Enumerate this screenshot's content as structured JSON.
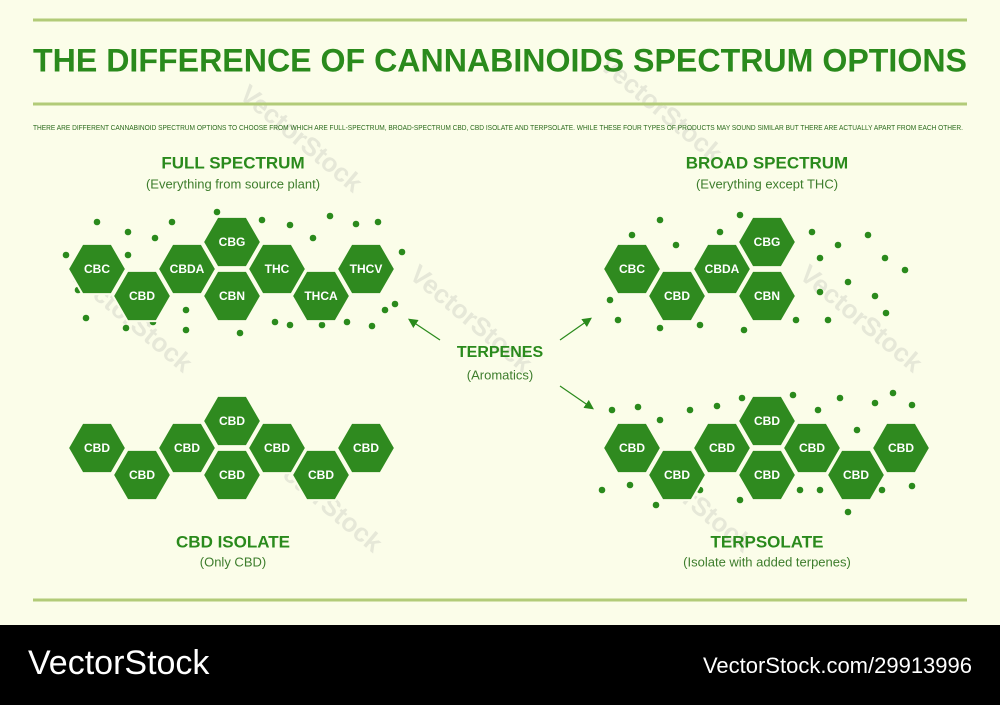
{
  "header": {
    "title": "THE DIFFERENCE OF CANNABINOIDS SPECTRUM OPTIONS",
    "intro": "THERE ARE DIFFERENT CANNABINOID SPECTRUM OPTIONS TO CHOOSE FROM WHICH ARE FULL-SPECTRUM, BROAD-SPECTRUM CBD, CBD ISOLATE AND TERPSOLATE. WHILE THESE FOUR TYPES OF PRODUCTS MAY SOUND SIMILAR BUT THERE ARE ACTUALLY APART FROM EACH OTHER."
  },
  "panels": [
    {
      "title": "FULL SPECTRUM",
      "subtitle": "(Everything from source plant)",
      "molecules": [
        "CBC",
        "CBD",
        "CBDA",
        "CBG",
        "CBN",
        "THC",
        "THCA",
        "THCV"
      ]
    },
    {
      "title": "BROAD SPECTRUM",
      "subtitle": "(Everything except THC)",
      "molecules": [
        "CBC",
        "CBD",
        "CBDA",
        "CBG",
        "CBN"
      ]
    },
    {
      "title": "CBD ISOLATE",
      "subtitle": "(Only CBD)",
      "molecules": [
        "CBD",
        "CBD",
        "CBD",
        "CBD",
        "CBD",
        "CBD",
        "CBD",
        "CBD"
      ]
    },
    {
      "title": "TERPSOLATE",
      "subtitle": "(Isolate with added terpenes)",
      "molecules": [
        "CBD",
        "CBD",
        "CBD",
        "CBD",
        "CBD",
        "CBD",
        "CBD",
        "CBD"
      ]
    }
  ],
  "center": {
    "title": "TERPENES",
    "subtitle": "(Aromatics)"
  },
  "watermark": "VectorStock",
  "footer": {
    "brand": "VectorStock",
    "id": "VectorStock.com/29913996"
  }
}
